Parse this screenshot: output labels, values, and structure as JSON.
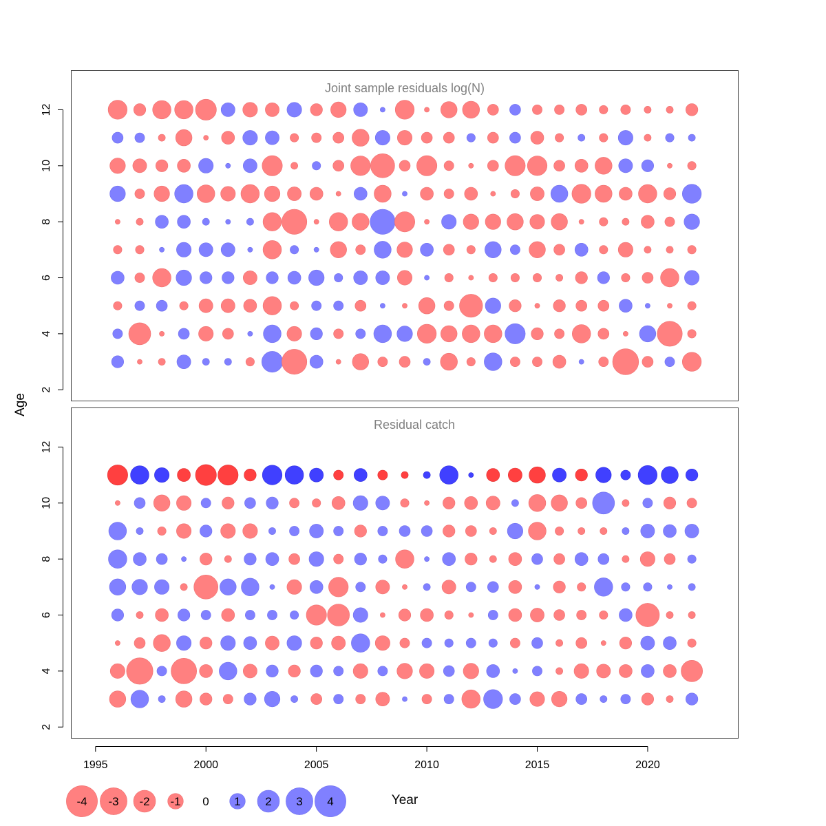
{
  "axes": {
    "ylabel": "Age",
    "xlabel": "Year",
    "x_ticks": [
      1995,
      2000,
      2005,
      2010,
      2015,
      2020
    ],
    "y_ticks": [
      2,
      4,
      6,
      8,
      10,
      12
    ],
    "xlim": [
      1993.9,
      2024.1
    ],
    "ylim": [
      1.6,
      13.4
    ]
  },
  "colors": {
    "negative_light": "#ff8080",
    "positive_light": "#8080ff",
    "negative_dark": "#ff4040",
    "positive_dark": "#4040ff",
    "panel_title": "#808080",
    "frame": "#404040"
  },
  "legend": {
    "values": [
      -4,
      -3,
      -2,
      -1,
      0,
      1,
      2,
      3,
      4
    ],
    "labels": [
      "-4",
      "-3",
      "-2",
      "-1",
      "0",
      "1",
      "2",
      "3",
      "4"
    ]
  },
  "chart_data": [
    {
      "type": "scatter",
      "title": "Joint sample residuals log(N)",
      "xlabel": "Year",
      "ylabel": "Age",
      "years": [
        1996,
        1997,
        1998,
        1999,
        2000,
        2001,
        2002,
        2003,
        2004,
        2005,
        2006,
        2007,
        2008,
        2009,
        2010,
        2011,
        2012,
        2013,
        2014,
        2015,
        2016,
        2017,
        2018,
        2019,
        2020,
        2021,
        2022
      ],
      "ages": [
        3,
        4,
        5,
        6,
        7,
        8,
        9,
        10,
        11,
        12
      ],
      "highlight_ages": [],
      "residuals": [
        [
          0.6,
          -0.1,
          -0.2,
          0.8,
          0.2,
          0.2,
          -0.3,
          1.8,
          -2.6,
          0.7,
          -0.1,
          -1.1,
          -0.4,
          -0.5,
          0.2,
          -1.2,
          -0.3,
          1.3,
          -0.4,
          -0.4,
          -0.7,
          0.1,
          -0.4,
          -2.8,
          -0.5,
          0.4,
          -1.5
        ],
        [
          0.4,
          -2.0,
          -0.1,
          0.5,
          -0.9,
          -0.5,
          0.1,
          1.3,
          -0.9,
          0.6,
          -0.4,
          0.4,
          1.3,
          1.0,
          -1.5,
          -1.1,
          -1.3,
          -1.3,
          1.7,
          -0.6,
          -0.4,
          -1.4,
          -0.5,
          -0.1,
          1.1,
          -2.6,
          -0.3
        ],
        [
          -0.3,
          0.4,
          0.5,
          -0.3,
          -0.8,
          -0.8,
          -0.7,
          -1.4,
          -0.3,
          0.4,
          0.4,
          -0.5,
          0.1,
          -0.1,
          -1.1,
          -0.4,
          -2.2,
          1.0,
          -0.6,
          -0.1,
          -0.6,
          -0.5,
          -0.5,
          0.7,
          0.1,
          -0.1,
          -0.3
        ],
        [
          0.7,
          -0.4,
          -1.4,
          1.0,
          0.6,
          0.6,
          -0.8,
          0.6,
          0.7,
          1.0,
          0.3,
          0.8,
          0.8,
          -0.9,
          0.1,
          -0.3,
          -0.1,
          -0.3,
          -0.3,
          -0.3,
          -0.2,
          -0.6,
          0.6,
          -0.3,
          -0.5,
          -1.4,
          0.9
        ],
        [
          -0.3,
          -0.3,
          0.1,
          0.9,
          0.8,
          0.8,
          0.1,
          -1.4,
          0.3,
          0.1,
          -1.1,
          -0.4,
          1.2,
          -1.0,
          0.7,
          -0.5,
          -0.3,
          1.1,
          0.4,
          -1.1,
          -0.5,
          0.7,
          -0.3,
          -0.9,
          -0.2,
          -0.2,
          -0.3
        ],
        [
          -0.1,
          -0.2,
          0.7,
          0.7,
          0.2,
          0.1,
          0.2,
          -1.4,
          -2.6,
          -0.1,
          -1.4,
          -1.2,
          2.6,
          -1.7,
          -0.1,
          0.9,
          -1.0,
          -1.0,
          -1.1,
          -0.9,
          -1.1,
          -0.1,
          -0.3,
          -0.2,
          -0.7,
          -0.4,
          1.0
        ],
        [
          1.0,
          -0.4,
          -1.0,
          1.4,
          -1.3,
          -0.9,
          -1.4,
          -1.0,
          -0.8,
          -0.7,
          -0.1,
          0.7,
          -1.2,
          0.1,
          -0.7,
          -0.4,
          -0.7,
          -0.1,
          -0.3,
          -0.8,
          1.2,
          -1.5,
          -1.2,
          -0.7,
          -1.4,
          -0.6,
          1.5
        ],
        [
          -1.0,
          -0.8,
          -0.6,
          -0.7,
          0.9,
          0.1,
          0.8,
          -1.7,
          -0.2,
          0.3,
          -0.5,
          -1.6,
          -2.4,
          -0.5,
          -1.7,
          -0.4,
          -0.1,
          -0.5,
          -1.7,
          -1.6,
          -0.5,
          -0.7,
          -1.2,
          0.8,
          0.6,
          -0.1,
          -0.3
        ],
        [
          0.5,
          0.4,
          -0.2,
          -1.1,
          -0.1,
          -0.7,
          0.9,
          0.8,
          -0.3,
          -0.4,
          -0.5,
          -1.2,
          0.9,
          -0.9,
          -0.5,
          -0.5,
          0.3,
          -0.5,
          0.5,
          -0.7,
          -0.3,
          0.2,
          -0.3,
          0.9,
          -0.2,
          0.3,
          0.2
        ],
        [
          -1.5,
          -0.6,
          -1.4,
          -1.4,
          -1.8,
          0.8,
          -0.9,
          -0.8,
          0.9,
          -0.6,
          -1.0,
          0.8,
          0.1,
          -1.5,
          -0.1,
          -1.1,
          -1.2,
          -0.5,
          0.5,
          -0.4,
          -0.4,
          -0.5,
          -0.3,
          -0.4,
          -0.2,
          -0.2,
          -0.6
        ]
      ]
    },
    {
      "type": "scatter",
      "title": "Residual catch",
      "xlabel": "Year",
      "ylabel": "Age",
      "years": [
        1996,
        1997,
        1998,
        1999,
        2000,
        2001,
        2002,
        2003,
        2004,
        2005,
        2006,
        2007,
        2008,
        2009,
        2010,
        2011,
        2012,
        2013,
        2014,
        2015,
        2016,
        2017,
        2018,
        2019,
        2020,
        2021,
        2022
      ],
      "ages": [
        3,
        4,
        5,
        6,
        7,
        8,
        9,
        10,
        11
      ],
      "highlight_ages": [
        11
      ],
      "residuals": [
        [
          -1.1,
          1.3,
          0.2,
          -1.1,
          -0.6,
          -0.4,
          0.6,
          1.0,
          0.2,
          -0.5,
          0.4,
          -0.4,
          -0.8,
          0.1,
          -0.4,
          0.4,
          -1.4,
          1.5,
          0.5,
          -0.9,
          -1.0,
          0.5,
          0.2,
          0.4,
          -0.6,
          -0.2,
          0.6
        ],
        [
          -0.9,
          -2.9,
          0.4,
          -2.7,
          -0.7,
          1.3,
          -0.8,
          0.6,
          -0.6,
          0.6,
          0.4,
          -0.9,
          0.4,
          -1.0,
          -0.9,
          0.5,
          -1.0,
          0.7,
          0.1,
          0.4,
          -0.2,
          -0.9,
          -0.8,
          -0.7,
          0.7,
          -0.7,
          -1.9
        ],
        [
          -0.1,
          -0.5,
          -1.2,
          0.9,
          -0.6,
          0.9,
          0.7,
          -0.8,
          0.9,
          -0.6,
          -0.8,
          1.4,
          -0.9,
          -0.4,
          0.4,
          0.3,
          0.4,
          0.3,
          -0.4,
          0.5,
          -0.2,
          -0.5,
          -0.1,
          -0.6,
          0.8,
          0.7,
          -0.3
        ],
        [
          0.6,
          -0.2,
          -0.7,
          0.6,
          0.4,
          -0.7,
          0.4,
          0.4,
          0.3,
          -1.7,
          -2.0,
          0.9,
          -0.1,
          -0.6,
          -0.7,
          -0.3,
          -0.1,
          0.4,
          -0.7,
          -0.8,
          -0.5,
          -0.4,
          -0.3,
          0.7,
          -2.3,
          -0.2,
          -0.2
        ],
        [
          1.1,
          1.0,
          0.9,
          -0.2,
          -2.4,
          1.1,
          1.3,
          0.1,
          -0.9,
          0.7,
          -1.6,
          0.4,
          -0.8,
          -0.1,
          0.2,
          -0.8,
          0.4,
          0.5,
          -0.7,
          0.1,
          -0.6,
          -0.3,
          1.4,
          0.3,
          0.3,
          0.1,
          0.2
        ],
        [
          1.4,
          0.7,
          0.5,
          0.1,
          -0.6,
          -0.2,
          0.6,
          0.7,
          -0.5,
          0.9,
          -0.4,
          0.6,
          0.3,
          -1.4,
          0.1,
          0.7,
          -0.6,
          -0.2,
          -0.7,
          0.5,
          -0.5,
          0.7,
          0.5,
          -0.2,
          -0.9,
          -0.5,
          0.3
        ],
        [
          1.3,
          0.2,
          -0.3,
          -0.9,
          0.6,
          -0.9,
          -0.9,
          0.2,
          0.4,
          0.8,
          0.4,
          -0.6,
          0.4,
          0.5,
          0.5,
          -0.6,
          -0.5,
          -0.2,
          1.0,
          -1.3,
          -0.3,
          -0.2,
          -0.2,
          0.2,
          0.8,
          0.7,
          0.8
        ],
        [
          -0.1,
          0.5,
          -1.1,
          -0.9,
          0.4,
          -0.6,
          0.5,
          0.6,
          -0.4,
          -0.3,
          -0.7,
          0.9,
          0.8,
          -0.3,
          -0.1,
          -0.6,
          -0.7,
          -0.8,
          0.2,
          -1.2,
          -1.1,
          -0.5,
          2.0,
          -0.2,
          0.4,
          -0.6,
          -0.4
        ],
        [
          -1.7,
          1.4,
          0.9,
          -0.7,
          -1.8,
          -1.7,
          -0.6,
          1.6,
          1.4,
          0.8,
          -0.4,
          0.7,
          -0.4,
          -0.2,
          0.2,
          1.4,
          0.1,
          -0.7,
          -0.8,
          -1.1,
          0.8,
          -0.6,
          1.0,
          0.4,
          1.5,
          1.2,
          0.6
        ]
      ]
    }
  ]
}
